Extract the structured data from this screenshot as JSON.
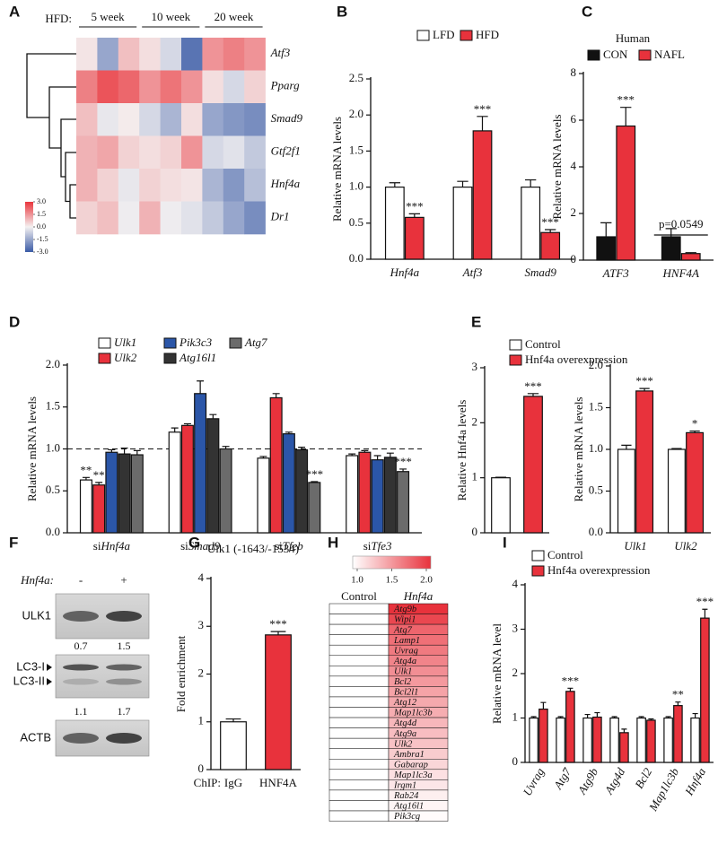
{
  "chart_data": [
    {
      "type": "heatmap",
      "panel": "A",
      "column_label": "HFD:",
      "column_groups": [
        "5 week",
        "10 week",
        "20 week"
      ],
      "rows": [
        "Atf3",
        "Pparg",
        "Smad9",
        "Gtf2f1",
        "Hnf4a",
        "Dr1"
      ],
      "values": [
        [
          0.2,
          -1.5,
          0.8,
          0.3,
          -0.5,
          -2.5,
          1.5,
          1.8,
          1.5
        ],
        [
          1.8,
          2.5,
          2.2,
          1.5,
          2.0,
          1.5,
          0.3,
          -0.5,
          0.5
        ],
        [
          0.8,
          -0.2,
          0.1,
          -0.5,
          -1.2,
          0.3,
          -1.5,
          -1.8,
          -2.0
        ],
        [
          1.0,
          1.2,
          0.5,
          0.3,
          0.5,
          1.5,
          -0.5,
          -0.3,
          -0.8
        ],
        [
          1.0,
          0.5,
          -0.2,
          0.5,
          0.3,
          0.2,
          -1.2,
          -1.8,
          -1.0
        ],
        [
          0.5,
          0.8,
          -0.1,
          1.0,
          -0.1,
          -0.3,
          -0.8,
          -1.5,
          -2.0
        ]
      ],
      "clim": [
        -3,
        3
      ],
      "cticks": [
        {
          "value": 3,
          "label": "3.0"
        },
        {
          "value": 1.5,
          "label": "1.5"
        },
        {
          "value": 0,
          "label": "0.0"
        },
        {
          "value": -1.5,
          "label": "-1.5"
        },
        {
          "value": -3,
          "label": "-3.0"
        }
      ],
      "colors": {
        "low": "#3a5ba6",
        "mid": "#f4f1f1",
        "high": "#e9353c"
      }
    },
    {
      "type": "bar",
      "panel": "B",
      "ylabel": "Relative mRNA levels",
      "categories": [
        "Hnf4a",
        "Atf3",
        "Smad9"
      ],
      "ylim": [
        0,
        2.5
      ],
      "yticks": [
        {
          "value": 0,
          "label": "0.0"
        },
        {
          "value": 0.5,
          "label": "0.5"
        },
        {
          "value": 1,
          "label": "1.0"
        },
        {
          "value": 1.5,
          "label": "1.5"
        },
        {
          "value": 2,
          "label": "2.0"
        },
        {
          "value": 2.5,
          "label": "2.5"
        }
      ],
      "series": [
        {
          "name": "LFD",
          "color": "#ffffff",
          "values": [
            1,
            1,
            1
          ],
          "errors": [
            0.06,
            0.08,
            0.1
          ]
        },
        {
          "name": "HFD",
          "color": "#e8323c",
          "values": [
            0.58,
            1.78,
            0.37
          ],
          "errors": [
            0.05,
            0.2,
            0.04
          ],
          "annotations": [
            "***",
            "***",
            "***"
          ]
        }
      ]
    },
    {
      "type": "bar",
      "panel": "C",
      "title": "Human",
      "ylabel": "Relative mRNA levels",
      "categories": [
        "ATF3",
        "HNF4A"
      ],
      "ylim": [
        0,
        8
      ],
      "yticks": [
        0,
        2,
        4,
        6,
        8
      ],
      "bracket_label": "p=0.0549",
      "series": [
        {
          "name": "CON",
          "color": "#111111",
          "values": [
            1,
            1
          ],
          "errors": [
            0.6,
            0.35
          ]
        },
        {
          "name": "NAFL",
          "color": "#e8323c",
          "values": [
            5.75,
            0.28
          ],
          "errors": [
            0.8,
            0.04
          ],
          "annotations": [
            "***",
            null
          ]
        }
      ]
    },
    {
      "type": "bar",
      "panel": "D",
      "ylabel": "Relative mRNA levels",
      "categories": [
        "siHnf4a",
        "siSmad9",
        "siTfeb",
        "siTfe3"
      ],
      "ylim": [
        0,
        2
      ],
      "reference_line": 1,
      "yticks": [
        {
          "value": 0,
          "label": "0.0"
        },
        {
          "value": 0.5,
          "label": "0.5"
        },
        {
          "value": 1,
          "label": "1.0"
        },
        {
          "value": 1.5,
          "label": "1.5"
        },
        {
          "value": 2,
          "label": "2.0"
        }
      ],
      "series": [
        {
          "name": "Ulk1",
          "color": "#ffffff",
          "values": [
            0.63,
            1.2,
            0.89,
            0.92
          ],
          "errors": [
            0.03,
            0.05,
            0.02,
            0.02
          ],
          "annotations": [
            "**",
            null,
            null,
            null
          ]
        },
        {
          "name": "Ulk2",
          "color": "#e8323c",
          "values": [
            0.57,
            1.28,
            1.61,
            0.96
          ],
          "errors": [
            0.03,
            0.02,
            0.05,
            0.02
          ],
          "annotations": [
            "**",
            null,
            null,
            null
          ]
        },
        {
          "name": "Pik3c3",
          "color": "#2b56a8",
          "values": [
            0.96,
            1.66,
            1.18,
            0.87
          ],
          "errors": [
            0.03,
            0.15,
            0.02,
            0.05
          ]
        },
        {
          "name": "Atg16l1",
          "color": "#333333",
          "values": [
            0.94,
            1.36,
            0.99,
            0.9
          ],
          "errors": [
            0.07,
            0.05,
            0.03,
            0.05
          ]
        },
        {
          "name": "Atg7",
          "color": "#6b6b6b",
          "values": [
            0.93,
            1.0,
            0.6,
            0.73
          ],
          "errors": [
            0.05,
            0.03,
            0.01,
            0.03
          ],
          "annotations": [
            null,
            null,
            "***",
            "***"
          ]
        }
      ]
    },
    {
      "type": "bar-set",
      "panel": "E",
      "legend": [
        {
          "name": "Control",
          "color": "#ffffff"
        },
        {
          "name": "Hnf4a overexpression",
          "color": "#e8323c"
        }
      ],
      "plots": [
        {
          "ylabel": "Relative Hnf4a levels",
          "ylim": [
            0,
            3
          ],
          "yticks": [
            0,
            1,
            2,
            3
          ],
          "series": [
            {
              "colors": [
                "#ffffff",
                "#e8323c"
              ],
              "values": [
                1,
                2.48
              ],
              "errors": [
                0.01,
                0.05
              ],
              "annotations": [
                null,
                "***"
              ]
            }
          ]
        },
        {
          "ylabel": "Relative mRNA levels",
          "categories": [
            "Ulk1",
            "Ulk2"
          ],
          "ylim": [
            0,
            2
          ],
          "yticks": [
            {
              "value": 0,
              "label": "0.0"
            },
            {
              "value": 0.5,
              "label": "0.5"
            },
            {
              "value": 1,
              "label": "1.0"
            },
            {
              "value": 1.5,
              "label": "1.5"
            },
            {
              "value": 2,
              "label": "2.0"
            }
          ],
          "series": [
            {
              "color": "#ffffff",
              "values": [
                1,
                1
              ],
              "errors": [
                0.05,
                0.01
              ]
            },
            {
              "color": "#e8323c",
              "values": [
                1.7,
                1.2
              ],
              "errors": [
                0.03,
                0.02
              ],
              "annotations": [
                "***",
                "*"
              ]
            }
          ]
        }
      ]
    },
    {
      "type": "blot",
      "panel": "F",
      "lane_label": "Hnf4a:",
      "lanes": [
        "-",
        "+"
      ],
      "bands": [
        {
          "names": [
            "ULK1"
          ],
          "quant": [
            0.7,
            1.5
          ]
        },
        {
          "names": [
            "LC3-I",
            "LC3-II"
          ],
          "quant": [
            1.1,
            1.7
          ]
        },
        {
          "names": [
            "ACTB"
          ]
        }
      ]
    },
    {
      "type": "bar",
      "panel": "G",
      "title": "Ulk1 (-1643/-1534)",
      "ylabel": "Fold enrichment",
      "x_label": "ChIP:",
      "categories": [
        "IgG",
        "HNF4A"
      ],
      "ylim": [
        0,
        4
      ],
      "yticks": [
        0,
        1,
        2,
        3,
        4
      ],
      "series": [
        {
          "colors": [
            "#ffffff",
            "#e8323c"
          ],
          "values": [
            1,
            2.82
          ],
          "errors": [
            0.06,
            0.07
          ],
          "annotations": [
            null,
            "***"
          ]
        }
      ]
    },
    {
      "type": "heatmap",
      "panel": "H",
      "columns": [
        "Control",
        "Hnf4a"
      ],
      "rows": [
        "Atg9b",
        "Wipi1",
        "Atg7",
        "Lamp1",
        "Uvrag",
        "Atg4a",
        "Ulk1",
        "Bcl2",
        "Bcl2l1",
        "Atg12",
        "Map1lc3b",
        "Atg4d",
        "Atg9a",
        "Ulk2",
        "Ambra1",
        "Gabarap",
        "Map1lc3a",
        "Irgm1",
        "Rab24",
        "Atg16l1",
        "Pik3cg"
      ],
      "values": [
        [
          1,
          2.0
        ],
        [
          1,
          1.9
        ],
        [
          1,
          1.75
        ],
        [
          1,
          1.7
        ],
        [
          1,
          1.65
        ],
        [
          1,
          1.6
        ],
        [
          1,
          1.55
        ],
        [
          1,
          1.5
        ],
        [
          1,
          1.45
        ],
        [
          1,
          1.42
        ],
        [
          1,
          1.4
        ],
        [
          1,
          1.35
        ],
        [
          1,
          1.32
        ],
        [
          1,
          1.3
        ],
        [
          1,
          1.25
        ],
        [
          1,
          1.2
        ],
        [
          1,
          1.15
        ],
        [
          1,
          1.12
        ],
        [
          1,
          1.08
        ],
        [
          1,
          1.05
        ],
        [
          1,
          1.02
        ]
      ],
      "clim": [
        1,
        2
      ],
      "cticks": [
        {
          "value": 1,
          "label": "1.0"
        },
        {
          "value": 1.5,
          "label": "1.5"
        },
        {
          "value": 2,
          "label": "2.0"
        }
      ],
      "colors": {
        "low": "#ffffff",
        "high": "#e8323c"
      }
    },
    {
      "type": "bar",
      "panel": "I",
      "ylabel": "Relative mRNA level",
      "categories": [
        "Uvrag",
        "Atg7",
        "Atg9b",
        "Atg4d",
        "Bcl2",
        "Map1lc3b",
        "Hnf4a"
      ],
      "ylim": [
        0,
        4
      ],
      "yticks": [
        0,
        1,
        2,
        3,
        4
      ],
      "series": [
        {
          "name": "Control",
          "color": "#ffffff",
          "values": [
            1,
            1,
            1,
            1,
            1,
            1,
            1
          ],
          "errors": [
            0.03,
            0.03,
            0.08,
            0.03,
            0.03,
            0.03,
            0.1
          ]
        },
        {
          "name": "Hnf4a overexpression",
          "color": "#e8323c",
          "values": [
            1.2,
            1.6,
            1.02,
            0.67,
            0.95,
            1.28,
            3.25
          ],
          "errors": [
            0.15,
            0.07,
            0.1,
            0.08,
            0.03,
            0.08,
            0.2
          ],
          "annotations": [
            null,
            "***",
            null,
            null,
            null,
            "**",
            "***"
          ]
        }
      ]
    }
  ]
}
